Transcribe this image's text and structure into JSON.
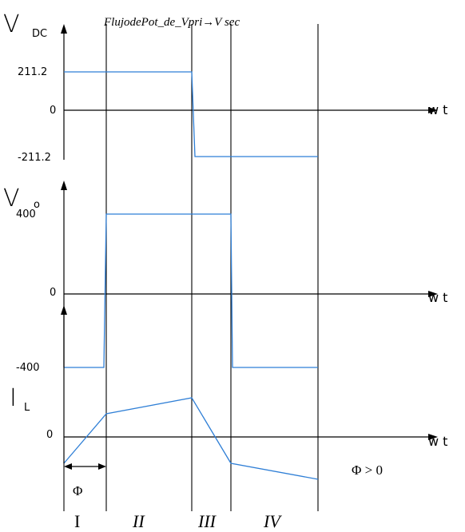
{
  "title": "FlujodePot_de_Vpri→V sec",
  "panels": {
    "vdc": {
      "symbol": "V",
      "subscript": "DC",
      "ticks": {
        "pos": "211.2",
        "zero": "0",
        "neg": "-211.2"
      },
      "x_axis_label": "w t"
    },
    "vo": {
      "symbol": "V",
      "subscript": "o",
      "ticks": {
        "pos": "400",
        "zero": "0",
        "neg": "-400"
      },
      "x_axis_label": "w t"
    },
    "il": {
      "symbol": "I",
      "subscript": "L",
      "ticks": {
        "zero": "0"
      },
      "x_axis_label": "w t"
    }
  },
  "phi_label": "Φ",
  "condition": "Φ > 0",
  "intervals": [
    {
      "label": "I",
      "italic": false
    },
    {
      "label": "II",
      "italic": true
    },
    {
      "label": "III",
      "italic": true
    },
    {
      "label": "IV",
      "italic": true
    }
  ],
  "colors": {
    "waveform": "#2f7fd6",
    "axes": "#000000"
  }
}
